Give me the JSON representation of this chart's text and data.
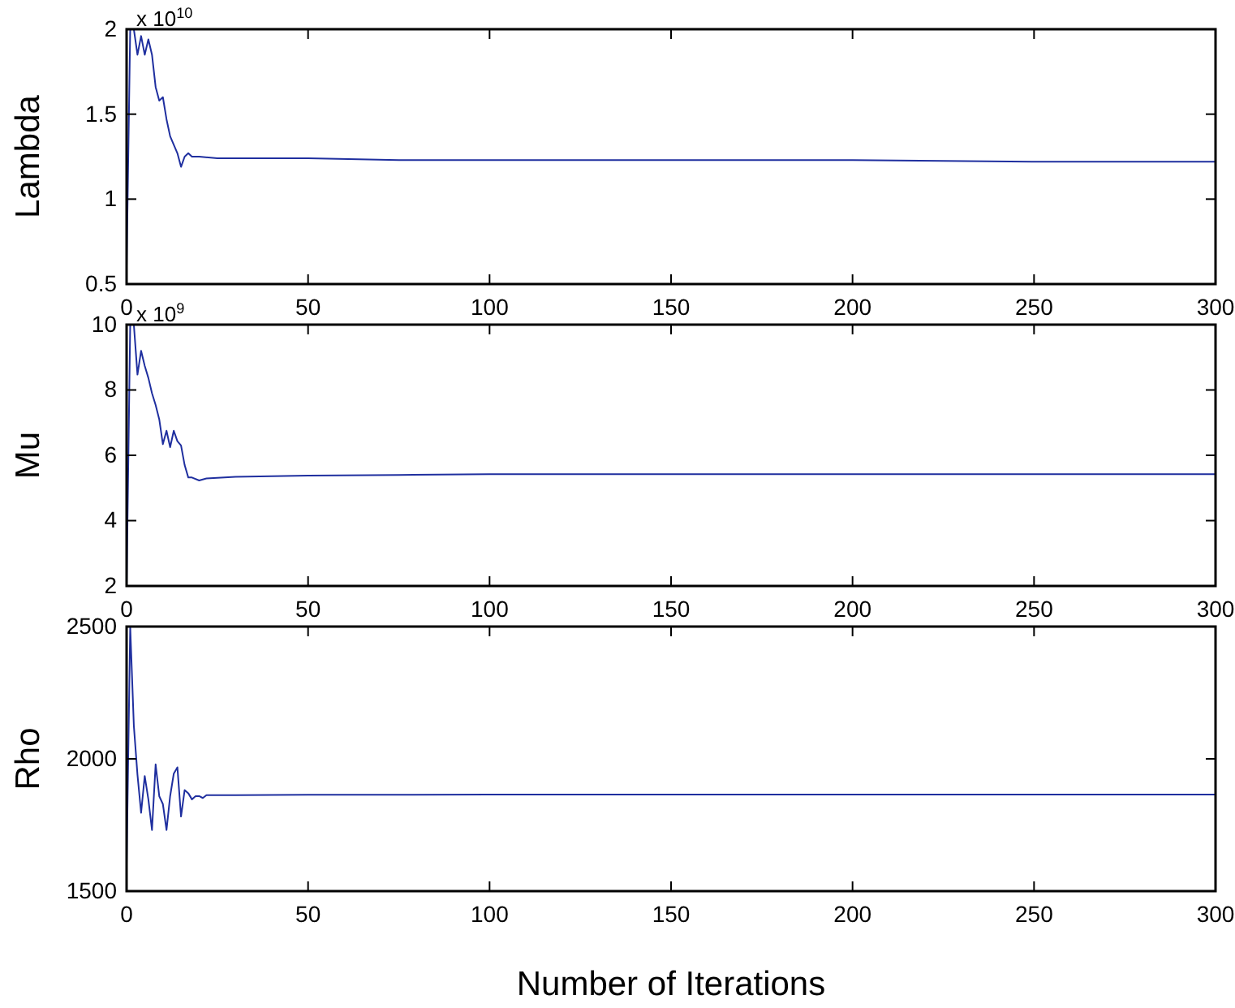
{
  "chart_data": [
    {
      "type": "line",
      "ylabel": "Lambda",
      "annotations": [
        "x 10$^{10}$"
      ],
      "xlim": [
        0,
        300
      ],
      "xticks": [
        0,
        50,
        100,
        150,
        200,
        250,
        300
      ],
      "ylim": [
        0.5,
        2
      ],
      "yticks": [
        0.5,
        1,
        1.5,
        2
      ],
      "marker": "none",
      "line_style": "solid",
      "x": [
        0,
        1,
        2,
        3,
        4,
        5,
        6,
        7,
        8,
        9,
        10,
        11,
        12,
        13,
        14,
        15,
        16,
        17,
        18,
        20,
        25,
        30,
        50,
        75,
        100,
        150,
        200,
        250,
        300
      ],
      "series": [
        {
          "color": "#1f2f9f",
          "values": [
            0.6,
            2.0,
            2.0,
            1.85,
            1.96,
            1.85,
            1.94,
            1.85,
            1.66,
            1.58,
            1.6,
            1.47,
            1.37,
            1.32,
            1.27,
            1.19,
            1.25,
            1.27,
            1.25,
            1.25,
            1.24,
            1.24,
            1.24,
            1.23,
            1.23,
            1.23,
            1.23,
            1.22,
            1.22
          ]
        }
      ]
    },
    {
      "type": "line",
      "ylabel": "Mu",
      "annotations": [
        "x 10$^{9}$"
      ],
      "xlim": [
        0,
        300
      ],
      "xticks": [
        0,
        50,
        100,
        150,
        200,
        250,
        300
      ],
      "ylim": [
        2,
        10
      ],
      "yticks": [
        2,
        4,
        6,
        8,
        10
      ],
      "marker": "none",
      "line_style": "solid",
      "x": [
        0,
        1,
        2,
        3,
        4,
        5,
        6,
        7,
        8,
        9,
        10,
        11,
        12,
        13,
        14,
        15,
        16,
        17,
        18,
        20,
        22,
        30,
        50,
        75,
        100,
        150,
        200,
        250,
        300
      ],
      "series": [
        {
          "color": "#1f2f9f",
          "values": [
            2,
            10,
            10,
            8.47,
            9.2,
            8.74,
            8.37,
            7.9,
            7.54,
            7.1,
            6.34,
            6.75,
            6.25,
            6.75,
            6.43,
            6.3,
            5.7,
            5.32,
            5.32,
            5.23,
            5.29,
            5.34,
            5.38,
            5.4,
            5.42,
            5.42,
            5.42,
            5.42,
            5.42
          ]
        }
      ]
    },
    {
      "type": "line",
      "xlabel": "Number of Iterations",
      "ylabel": "Rho",
      "xlim": [
        0,
        300
      ],
      "xticks": [
        0,
        50,
        100,
        150,
        200,
        250,
        300
      ],
      "ylim": [
        1500,
        2500
      ],
      "yticks": [
        1500,
        2000,
        2500
      ],
      "marker": "none",
      "line_style": "solid",
      "x": [
        0,
        1,
        2,
        3,
        4,
        5,
        6,
        7,
        8,
        9,
        10,
        11,
        12,
        13,
        14,
        15,
        16,
        17,
        18,
        19,
        20,
        21,
        22,
        30,
        50,
        100,
        150,
        200,
        250,
        300
      ],
      "series": [
        {
          "color": "#1f2f9f",
          "values": [
            1600,
            2500,
            2125,
            1940,
            1796,
            1935,
            1847,
            1731,
            1979,
            1859,
            1829,
            1731,
            1859,
            1944,
            1968,
            1782,
            1882,
            1870,
            1847,
            1859,
            1859,
            1852,
            1863,
            1863,
            1864,
            1865,
            1865,
            1865,
            1865,
            1865
          ]
        }
      ]
    }
  ]
}
